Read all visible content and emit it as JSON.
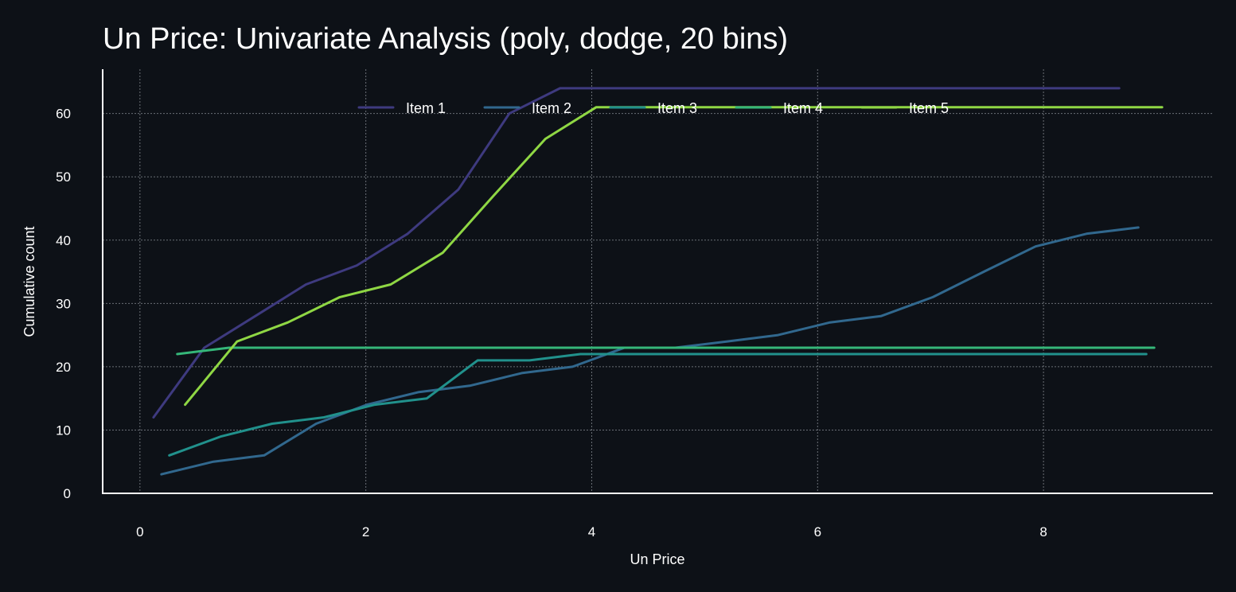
{
  "chart_data": {
    "type": "line",
    "title": "Un Price: Univariate Analysis (poly, dodge, 20 bins)",
    "xlabel": "Un Price",
    "ylabel": "Cumulative count",
    "xlim": [
      -0.33,
      9.5
    ],
    "ylim": [
      0,
      67
    ],
    "xticks": [
      0,
      2,
      4,
      6,
      8
    ],
    "yticks": [
      0,
      10,
      20,
      30,
      40,
      50,
      60
    ],
    "grid": true,
    "legend_position": "top-center",
    "series": [
      {
        "name": "Item 1",
        "color": "#3e3a7f",
        "x": [
          0.12,
          0.57,
          1.02,
          1.47,
          1.92,
          2.37,
          2.82,
          3.27,
          3.72,
          4.17,
          4.62,
          5.07,
          5.52,
          5.97,
          6.42,
          6.87,
          7.32,
          7.77,
          8.22,
          8.67
        ],
        "y": [
          12,
          23,
          28,
          33,
          36,
          41,
          48,
          60,
          64,
          64,
          64,
          64,
          64,
          64,
          64,
          64,
          64,
          64,
          64,
          64
        ]
      },
      {
        "name": "Item 2",
        "color": "#31688e",
        "x": [
          0.19,
          0.65,
          1.1,
          1.56,
          2.01,
          2.47,
          2.92,
          3.38,
          3.83,
          4.29,
          4.74,
          5.2,
          5.65,
          6.11,
          6.56,
          7.02,
          7.47,
          7.93,
          8.38,
          8.84
        ],
        "y": [
          3,
          5,
          6,
          11,
          14,
          16,
          17,
          19,
          20,
          23,
          23,
          24,
          25,
          27,
          28,
          31,
          35,
          39,
          41,
          42
        ]
      },
      {
        "name": "Item 3",
        "color": "#21918c",
        "x": [
          0.26,
          0.72,
          1.17,
          1.63,
          2.08,
          2.54,
          2.99,
          3.45,
          3.9,
          4.36,
          4.81,
          5.27,
          5.72,
          6.18,
          6.63,
          7.09,
          7.54,
          8.0,
          8.45,
          8.91
        ],
        "y": [
          6,
          9,
          11,
          12,
          14,
          15,
          21,
          21,
          22,
          22,
          22,
          22,
          22,
          22,
          22,
          22,
          22,
          22,
          22,
          22
        ]
      },
      {
        "name": "Item 4",
        "color": "#35b779",
        "x": [
          0.33,
          0.79,
          1.24,
          1.7,
          2.15,
          2.61,
          3.06,
          3.52,
          3.97,
          4.43,
          4.88,
          5.34,
          5.79,
          6.25,
          6.7,
          7.16,
          7.61,
          8.07,
          8.52,
          8.98
        ],
        "y": [
          22,
          23,
          23,
          23,
          23,
          23,
          23,
          23,
          23,
          23,
          23,
          23,
          23,
          23,
          23,
          23,
          23,
          23,
          23,
          23
        ]
      },
      {
        "name": "Item 5",
        "color": "#8fd744",
        "x": [
          0.4,
          0.86,
          1.31,
          1.77,
          2.22,
          2.68,
          3.13,
          3.59,
          4.04,
          4.5,
          4.95,
          5.41,
          5.86,
          6.32,
          6.77,
          7.23,
          7.68,
          8.14,
          8.59,
          9.05
        ],
        "y": [
          14,
          24,
          27,
          31,
          33,
          38,
          47,
          56,
          61,
          61,
          61,
          61,
          61,
          61,
          61,
          61,
          61,
          61,
          61,
          61
        ]
      }
    ]
  }
}
